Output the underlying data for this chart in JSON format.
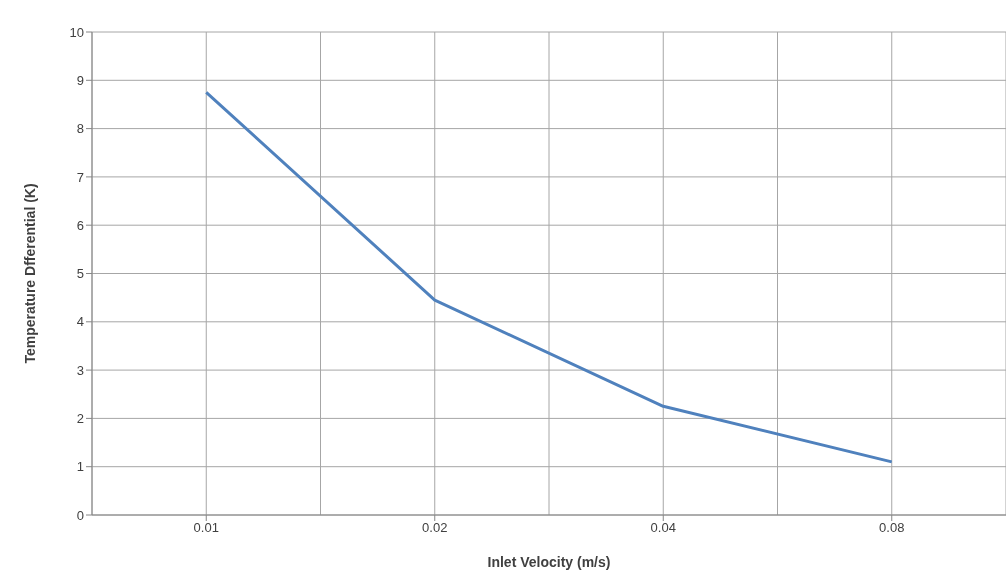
{
  "chart_data": {
    "type": "line",
    "xlabel": "Inlet Velocity (m/s)",
    "ylabel": "Temperature Dfferential (K)",
    "categories": [
      "0.01",
      "0.02",
      "0.04",
      "0.08"
    ],
    "series": [
      {
        "color": "#4f81bd",
        "values": [
          8.75,
          4.45,
          2.25,
          1.1
        ]
      }
    ],
    "ylim": [
      0,
      10
    ],
    "yticks": [
      0,
      1,
      2,
      3,
      4,
      5,
      6,
      7,
      8,
      9,
      10
    ],
    "grid": true,
    "marker": "none",
    "line_style": "solid"
  }
}
